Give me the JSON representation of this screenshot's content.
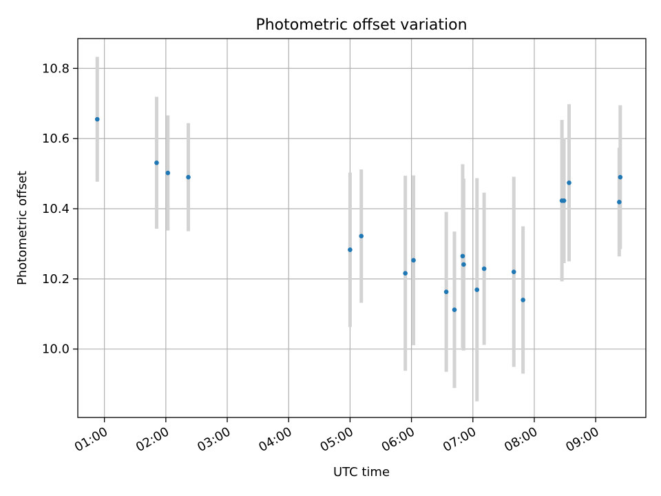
{
  "chart_data": {
    "type": "scatter",
    "title": "Photometric offset variation",
    "xlabel": "UTC time",
    "ylabel": "Photometric offset",
    "x_unit": "UTC time (HH:MM)",
    "xlim": [
      "00:34",
      "09:49"
    ],
    "ylim": [
      9.805,
      10.885
    ],
    "x_ticks": [
      "01:00",
      "02:00",
      "03:00",
      "04:00",
      "05:00",
      "06:00",
      "07:00",
      "08:00",
      "09:00"
    ],
    "y_ticks": [
      10.0,
      10.2,
      10.4,
      10.6,
      10.8
    ],
    "y_tick_labels": [
      "10.0",
      "10.2",
      "10.4",
      "10.6",
      "10.8"
    ],
    "grid": true,
    "marker_color": "#1f77b4",
    "errorbar_color": "#d3d3d3",
    "points": [
      {
        "time": "00:53",
        "y": 10.655,
        "err": 0.178
      },
      {
        "time": "01:51",
        "y": 10.531,
        "err": 0.188
      },
      {
        "time": "02:02",
        "y": 10.502,
        "err": 0.164
      },
      {
        "time": "02:22",
        "y": 10.49,
        "err": 0.154
      },
      {
        "time": "05:00",
        "y": 10.283,
        "err": 0.22
      },
      {
        "time": "05:11",
        "y": 10.322,
        "err": 0.19
      },
      {
        "time": "05:54",
        "y": 10.216,
        "err": 0.278
      },
      {
        "time": "06:02",
        "y": 10.253,
        "err": 0.242
      },
      {
        "time": "06:34",
        "y": 10.163,
        "err": 0.228
      },
      {
        "time": "06:42",
        "y": 10.112,
        "err": 0.223
      },
      {
        "time": "06:50",
        "y": 10.265,
        "err": 0.262
      },
      {
        "time": "06:51",
        "y": 10.241,
        "err": 0.245
      },
      {
        "time": "07:04",
        "y": 10.169,
        "err": 0.318
      },
      {
        "time": "07:11",
        "y": 10.229,
        "err": 0.217
      },
      {
        "time": "07:40",
        "y": 10.22,
        "err": 0.271
      },
      {
        "time": "07:49",
        "y": 10.14,
        "err": 0.21
      },
      {
        "time": "08:27",
        "y": 10.423,
        "err": 0.23
      },
      {
        "time": "08:29",
        "y": 10.423,
        "err": 0.178
      },
      {
        "time": "08:34",
        "y": 10.474,
        "err": 0.224
      },
      {
        "time": "09:23",
        "y": 10.419,
        "err": 0.155
      },
      {
        "time": "09:24",
        "y": 10.49,
        "err": 0.205
      }
    ]
  }
}
